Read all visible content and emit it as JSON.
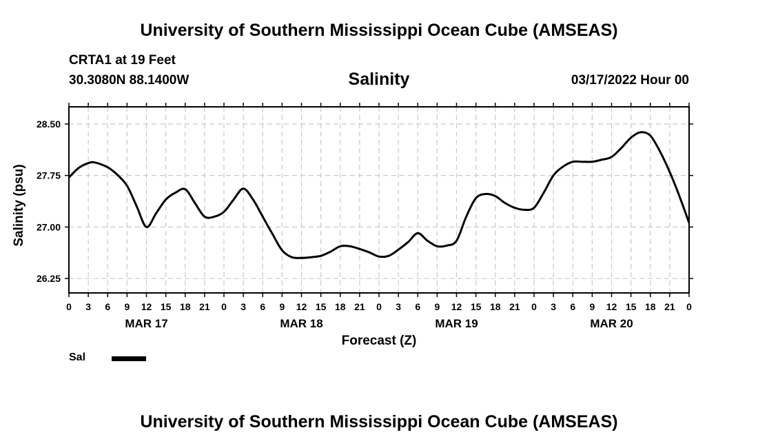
{
  "header": {
    "title": "University of Southern Mississippi Ocean Cube (AMSEAS)",
    "station": "CRTA1 at 19 Feet",
    "coordinates": "30.3080N  88.1400W",
    "datestamp": "03/17/2022 Hour 00"
  },
  "footer": {
    "title": "University of Southern Mississippi Ocean Cube (AMSEAS)"
  },
  "legend": {
    "label": "Sal",
    "color": "#000000"
  },
  "chart_data": {
    "type": "line",
    "title": "Salinity",
    "xlabel": "Forecast (Z)",
    "ylabel": "Salinity (psu)",
    "x_unit": "forecast hour",
    "xlim": [
      0,
      96
    ],
    "ylim": [
      26.04,
      28.75
    ],
    "yticks": [
      26.25,
      27.0,
      27.75,
      28.5
    ],
    "ytick_labels": [
      "26.25",
      "27.00",
      "27.75",
      "28.50"
    ],
    "xtick_hours": [
      0,
      3,
      6,
      9,
      12,
      15,
      18,
      21,
      24,
      27,
      30,
      33,
      36,
      39,
      42,
      45,
      48,
      51,
      54,
      57,
      60,
      63,
      66,
      69,
      72,
      75,
      78,
      81,
      84,
      87,
      90,
      93,
      96
    ],
    "xtick_labels": [
      "0",
      "3",
      "6",
      "9",
      "12",
      "15",
      "18",
      "21",
      "0",
      "3",
      "6",
      "9",
      "12",
      "15",
      "18",
      "21",
      "0",
      "3",
      "6",
      "9",
      "12",
      "15",
      "18",
      "21",
      "0",
      "3",
      "6",
      "9",
      "12",
      "15",
      "18",
      "21",
      "0"
    ],
    "date_labels": [
      {
        "hour": 12,
        "label": "MAR 17"
      },
      {
        "hour": 36,
        "label": "MAR 18"
      },
      {
        "hour": 60,
        "label": "MAR 19"
      },
      {
        "hour": 84,
        "label": "MAR 20"
      }
    ],
    "grid": true,
    "series": [
      {
        "name": "Sal",
        "color": "#000000",
        "x": [
          0,
          1.5,
          3,
          4,
          6,
          7.5,
          9,
          10.5,
          12,
          13.5,
          15,
          16.5,
          18,
          19.5,
          21,
          22.5,
          24,
          25.5,
          27,
          28.5,
          30,
          31.5,
          33,
          34.5,
          36,
          37.5,
          39,
          40.5,
          42,
          43.5,
          45,
          46.5,
          48,
          49.5,
          51,
          52.5,
          54,
          55.5,
          57,
          58.5,
          60,
          61.5,
          63,
          64.5,
          66,
          67.5,
          69,
          70.5,
          72,
          73.5,
          75,
          76.5,
          78,
          79.5,
          81,
          82.5,
          84,
          85.5,
          87,
          88.5,
          90,
          91.5,
          93,
          94.5,
          96
        ],
        "values": [
          27.72,
          27.86,
          27.93,
          27.94,
          27.87,
          27.76,
          27.6,
          27.3,
          27.0,
          27.2,
          27.4,
          27.5,
          27.55,
          27.35,
          27.15,
          27.15,
          27.22,
          27.4,
          27.56,
          27.4,
          27.15,
          26.9,
          26.66,
          26.56,
          26.55,
          26.56,
          26.58,
          26.64,
          26.72,
          26.72,
          26.68,
          26.63,
          26.57,
          26.58,
          26.67,
          26.78,
          26.91,
          26.8,
          26.72,
          26.73,
          26.8,
          27.15,
          27.42,
          27.48,
          27.45,
          27.35,
          27.28,
          27.25,
          27.28,
          27.5,
          27.75,
          27.88,
          27.95,
          27.95,
          27.95,
          27.98,
          28.02,
          28.15,
          28.3,
          28.38,
          28.33,
          28.1,
          27.8,
          27.45,
          27.06
        ]
      }
    ]
  }
}
